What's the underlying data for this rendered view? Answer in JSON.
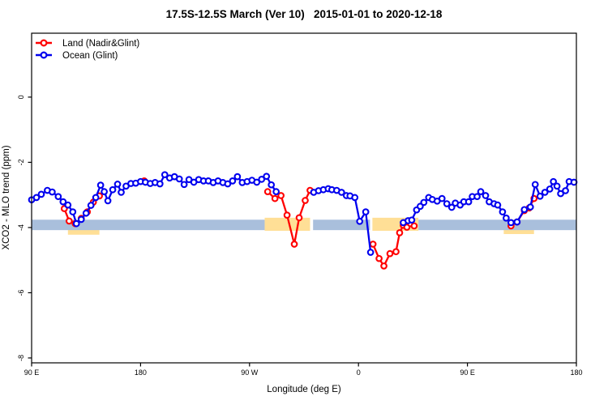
{
  "chart_data": {
    "type": "line",
    "title": "17.5S-12.5S March (Ver 10)   2015-01-01 to 2020-12-18",
    "xlabel": "Longitude (deg E)",
    "ylabel": "XCO2 - MLO trend (ppm)",
    "grid": "off",
    "legend_position": "top-left-inside",
    "x_axis": {
      "range": [
        90,
        540
      ],
      "ticks": [
        {
          "t": 90,
          "label": "90 E"
        },
        {
          "t": 180,
          "label": "180"
        },
        {
          "t": 270,
          "label": "90 W"
        },
        {
          "t": 360,
          "label": "0"
        },
        {
          "t": 450,
          "label": "90 E"
        },
        {
          "t": 540,
          "label": "180"
        }
      ]
    },
    "y_axis": {
      "range": [
        1.96,
        -8.15
      ],
      "ticks": [
        {
          "v": 0,
          "label": "0"
        },
        {
          "v": -2,
          "label": "-2"
        },
        {
          "v": -4,
          "label": "-4"
        },
        {
          "v": -6,
          "label": "-6"
        },
        {
          "v": -8,
          "label": "-8"
        }
      ]
    },
    "bands": [
      {
        "name": "land-reference-band",
        "color": "#FFDF96",
        "segments": [
          {
            "t": [
              120,
              146
            ],
            "ppm": [
              -3.82,
              -4.22
            ]
          },
          {
            "t": [
              282.5,
              320
            ],
            "ppm": [
              -3.7,
              -4.1
            ]
          },
          {
            "t": [
              371.5,
              409.5
            ],
            "ppm": [
              -3.7,
              -4.1
            ]
          },
          {
            "t": [
              480,
              505
            ],
            "ppm": [
              -3.82,
              -4.2
            ]
          }
        ]
      },
      {
        "name": "ocean-reference-band",
        "color": "#A9BFDC",
        "segments": [
          {
            "t": [
              90,
              282.5
            ],
            "ppm": [
              -3.76,
              -4.08
            ]
          },
          {
            "t": [
              322.5,
              369.5
            ],
            "ppm": [
              -3.76,
              -4.08
            ]
          },
          {
            "t": [
              409.5,
              540
            ],
            "ppm": [
              -3.76,
              -4.08
            ]
          }
        ]
      }
    ],
    "series": [
      {
        "name": "Land (Nadir&Glint)",
        "color": "#FF0000",
        "segments": [
          [
            [
              117,
              -3.42
            ],
            [
              121,
              -3.8
            ],
            [
              126,
              -3.88
            ],
            [
              131,
              -3.72
            ],
            [
              136,
              -3.52
            ],
            [
              141,
              -3.22
            ],
            [
              146,
              -3.03
            ]
          ],
          [
            [
              183,
              -2.57
            ]
          ],
          [
            [
              285,
              -2.9
            ],
            [
              291,
              -3.11
            ],
            [
              296,
              -3.02
            ],
            [
              301,
              -3.62
            ],
            [
              307,
              -4.51
            ],
            [
              311,
              -3.7
            ],
            [
              316,
              -3.17
            ],
            [
              320,
              -2.86
            ]
          ],
          [
            [
              372,
              -4.51
            ],
            [
              377,
              -4.95
            ],
            [
              381,
              -5.18
            ],
            [
              386,
              -4.8
            ],
            [
              391,
              -4.74
            ],
            [
              394,
              -4.16
            ],
            [
              397,
              -3.93
            ],
            [
              400,
              -3.99
            ],
            [
              403,
              -3.88
            ],
            [
              406,
              -3.95
            ]
          ],
          [
            [
              486,
              -3.95
            ],
            [
              491,
              -3.83
            ],
            [
              497,
              -3.48
            ],
            [
              501,
              -3.4
            ],
            [
              505,
              -3.11
            ]
          ]
        ]
      },
      {
        "name": "Ocean (Glint)",
        "color": "#0000EE",
        "segments": [
          [
            [
              90,
              -3.15
            ],
            [
              94,
              -3.08
            ],
            [
              98,
              -2.98
            ],
            [
              103,
              -2.86
            ],
            [
              107,
              -2.91
            ],
            [
              112,
              -3.05
            ],
            [
              116,
              -3.21
            ],
            [
              120,
              -3.31
            ],
            [
              124,
              -3.52
            ],
            [
              127,
              -3.88
            ],
            [
              131,
              -3.75
            ],
            [
              135,
              -3.56
            ],
            [
              139,
              -3.32
            ],
            [
              143,
              -3.08
            ],
            [
              147,
              -2.7
            ],
            [
              150,
              -2.9
            ],
            [
              153,
              -3.18
            ],
            [
              157,
              -2.84
            ],
            [
              161,
              -2.67
            ],
            [
              164,
              -2.92
            ],
            [
              168,
              -2.73
            ],
            [
              172,
              -2.65
            ],
            [
              176,
              -2.64
            ],
            [
              180,
              -2.59
            ],
            [
              184,
              -2.61
            ],
            [
              188,
              -2.65
            ],
            [
              192,
              -2.62
            ],
            [
              196,
              -2.66
            ],
            [
              200,
              -2.38
            ],
            [
              204,
              -2.48
            ],
            [
              208,
              -2.44
            ],
            [
              212,
              -2.51
            ],
            [
              216,
              -2.68
            ],
            [
              220,
              -2.53
            ],
            [
              224,
              -2.61
            ],
            [
              228,
              -2.53
            ],
            [
              232,
              -2.57
            ],
            [
              236,
              -2.57
            ],
            [
              240,
              -2.62
            ],
            [
              244,
              -2.57
            ],
            [
              248,
              -2.62
            ],
            [
              252,
              -2.66
            ],
            [
              256,
              -2.57
            ],
            [
              260,
              -2.44
            ],
            [
              264,
              -2.62
            ],
            [
              268,
              -2.59
            ],
            [
              272,
              -2.55
            ],
            [
              276,
              -2.61
            ],
            [
              280,
              -2.52
            ],
            [
              284,
              -2.43
            ],
            [
              288,
              -2.69
            ],
            [
              292,
              -2.9
            ]
          ],
          [
            [
              323,
              -2.92
            ],
            [
              327,
              -2.87
            ],
            [
              331,
              -2.84
            ],
            [
              335,
              -2.81
            ],
            [
              338,
              -2.84
            ],
            [
              342,
              -2.86
            ],
            [
              346,
              -2.92
            ],
            [
              350,
              -3.02
            ],
            [
              353,
              -3.03
            ],
            [
              357,
              -3.08
            ],
            [
              361,
              -3.81
            ],
            [
              366,
              -3.52
            ],
            [
              370,
              -4.76
            ]
          ],
          [
            [
              397,
              -3.85
            ],
            [
              401,
              -3.79
            ],
            [
              404,
              -3.77
            ],
            [
              408,
              -3.46
            ],
            [
              411,
              -3.35
            ],
            [
              414,
              -3.23
            ],
            [
              418,
              -3.08
            ],
            [
              421,
              -3.14
            ],
            [
              425,
              -3.19
            ],
            [
              429,
              -3.11
            ],
            [
              433,
              -3.27
            ],
            [
              437,
              -3.38
            ],
            [
              440,
              -3.25
            ],
            [
              444,
              -3.31
            ],
            [
              447,
              -3.21
            ],
            [
              451,
              -3.21
            ],
            [
              454,
              -3.05
            ],
            [
              458,
              -3.05
            ],
            [
              461,
              -2.9
            ],
            [
              465,
              -3.02
            ],
            [
              468,
              -3.21
            ],
            [
              472,
              -3.27
            ],
            [
              475,
              -3.31
            ],
            [
              479,
              -3.52
            ],
            [
              482,
              -3.71
            ],
            [
              486,
              -3.85
            ],
            [
              491,
              -3.83
            ],
            [
              497,
              -3.45
            ],
            [
              502,
              -3.37
            ],
            [
              506,
              -2.68
            ],
            [
              510,
              -3.04
            ],
            [
              514,
              -2.92
            ],
            [
              518,
              -2.82
            ],
            [
              521,
              -2.59
            ],
            [
              524,
              -2.73
            ],
            [
              527,
              -2.96
            ],
            [
              531,
              -2.87
            ],
            [
              534,
              -2.59
            ],
            [
              538,
              -2.61
            ]
          ]
        ]
      }
    ]
  }
}
